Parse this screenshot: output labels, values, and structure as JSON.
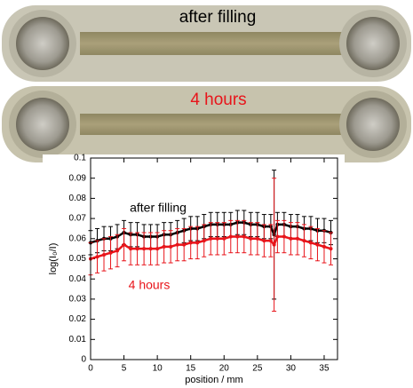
{
  "photos": [
    "after filling",
    "4 hours"
  ],
  "chart_data": {
    "type": "errorbar",
    "x_label": "position / mm",
    "y_label": "log(I₀/I)",
    "x": [
      0,
      1,
      2,
      3,
      4,
      5,
      6,
      7,
      8,
      9,
      10,
      11,
      12,
      13,
      14,
      15,
      16,
      17,
      18,
      19,
      20,
      21,
      22,
      23,
      24,
      25,
      26,
      27,
      27.5,
      28,
      29,
      30,
      31,
      32,
      33,
      34,
      35,
      36
    ],
    "series": [
      {
        "name": "after filling",
        "color": "#000000",
        "values": [
          0.058,
          0.059,
          0.06,
          0.06,
          0.061,
          0.063,
          0.062,
          0.062,
          0.061,
          0.061,
          0.061,
          0.062,
          0.062,
          0.063,
          0.064,
          0.065,
          0.065,
          0.066,
          0.067,
          0.067,
          0.067,
          0.067,
          0.068,
          0.068,
          0.067,
          0.067,
          0.066,
          0.066,
          0.062,
          0.067,
          0.067,
          0.066,
          0.066,
          0.065,
          0.065,
          0.064,
          0.064,
          0.063
        ],
        "errors": [
          0.006,
          0.006,
          0.006,
          0.006,
          0.006,
          0.006,
          0.006,
          0.006,
          0.006,
          0.006,
          0.006,
          0.006,
          0.006,
          0.006,
          0.006,
          0.006,
          0.006,
          0.006,
          0.006,
          0.006,
          0.006,
          0.006,
          0.006,
          0.006,
          0.006,
          0.006,
          0.006,
          0.006,
          0.032,
          0.006,
          0.006,
          0.006,
          0.006,
          0.006,
          0.006,
          0.006,
          0.006,
          0.006
        ]
      },
      {
        "name": "4 hours",
        "color": "#e8141a",
        "values": [
          0.05,
          0.051,
          0.052,
          0.053,
          0.054,
          0.057,
          0.055,
          0.055,
          0.055,
          0.055,
          0.055,
          0.056,
          0.056,
          0.057,
          0.057,
          0.058,
          0.058,
          0.059,
          0.06,
          0.06,
          0.06,
          0.061,
          0.061,
          0.061,
          0.06,
          0.06,
          0.059,
          0.059,
          0.057,
          0.061,
          0.061,
          0.06,
          0.06,
          0.059,
          0.058,
          0.057,
          0.056,
          0.055
        ],
        "errors": [
          0.008,
          0.008,
          0.008,
          0.008,
          0.008,
          0.008,
          0.008,
          0.008,
          0.008,
          0.008,
          0.008,
          0.008,
          0.008,
          0.008,
          0.008,
          0.008,
          0.008,
          0.008,
          0.008,
          0.008,
          0.008,
          0.008,
          0.008,
          0.008,
          0.008,
          0.008,
          0.008,
          0.008,
          0.033,
          0.008,
          0.008,
          0.008,
          0.008,
          0.008,
          0.008,
          0.008,
          0.008,
          0.008
        ]
      }
    ],
    "xlim": [
      0,
      37
    ],
    "xticks": [
      0,
      5,
      10,
      15,
      20,
      25,
      30,
      35
    ],
    "ylim": [
      0,
      0.1
    ],
    "yticks": [
      0,
      0.01,
      0.02,
      0.03,
      0.04,
      0.05,
      0.06,
      0.07,
      0.08,
      0.09,
      0.1
    ]
  }
}
